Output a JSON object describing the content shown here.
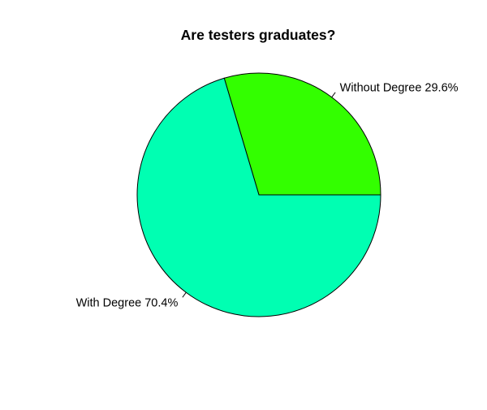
{
  "chart_data": {
    "type": "pie",
    "title": "Are testers graduates?",
    "slices": [
      {
        "label": "Without Degree 29.6%",
        "value": 29.6,
        "color": "#33ff00"
      },
      {
        "label": "With Degree 70.4%",
        "value": 70.4,
        "color": "#00ffb2"
      }
    ],
    "start_angle_deg": 0,
    "direction": "counterclockwise"
  }
}
